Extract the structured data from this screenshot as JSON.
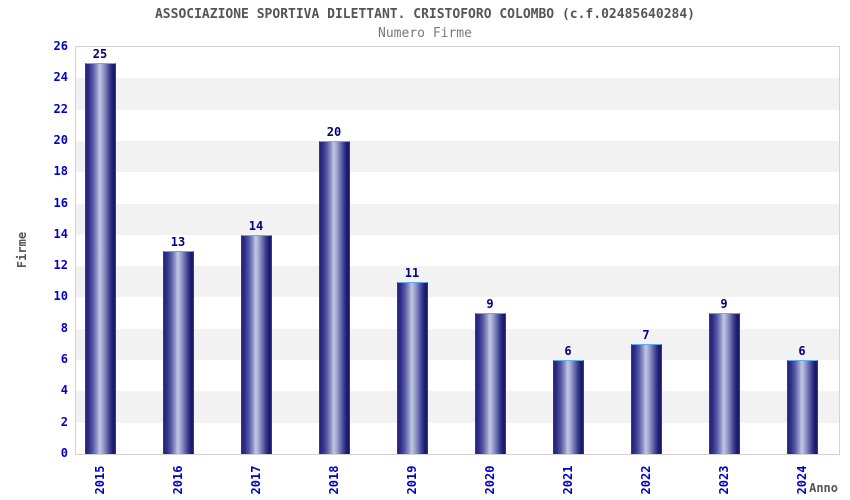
{
  "chart_data": {
    "type": "bar",
    "title": "ASSOCIAZIONE SPORTIVA DILETTANT. CRISTOFORO COLOMBO (c.f.02485640284)",
    "subtitle": "Numero Firme",
    "xlabel": "Anno",
    "ylabel": "Firme",
    "categories": [
      "2015",
      "2016",
      "2017",
      "2018",
      "2019",
      "2020",
      "2021",
      "2022",
      "2023",
      "2024"
    ],
    "values": [
      25,
      13,
      14,
      20,
      11,
      9,
      6,
      7,
      9,
      6
    ],
    "ylim": [
      0,
      26
    ],
    "ytick_step": 2,
    "grid": "alternating-horizontal-bands",
    "legend_position": "none",
    "x_tick_rotation_deg": 90,
    "value_labels_shown": true
  },
  "colors": {
    "axis_label_blue": "#0000cc",
    "value_label_navy": "#00007d",
    "title_gray": "#555555",
    "subtitle_gray": "#7a7a7a",
    "bar_body_dark": "#23237e",
    "bar_body_light": "#c2c7e2",
    "bar_border_side": "#2d2fd5",
    "bar_border_top": "#66aaf7",
    "band_gray": "#f2f2f2",
    "band_white": "#ffffff",
    "plot_border": "#d3d3d3",
    "background": "#ffffff"
  }
}
